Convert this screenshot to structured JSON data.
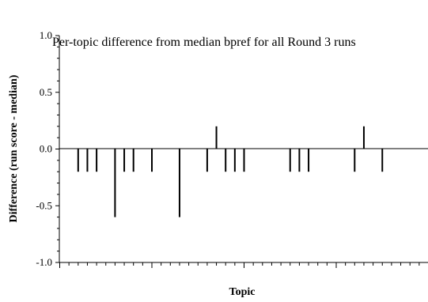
{
  "chart_data": {
    "type": "bar",
    "title": "Per-topic difference from median bpref for all Round 3 runs",
    "xlabel": "Topic",
    "ylabel": "Difference (run score - median)",
    "ylim": [
      -1.0,
      1.0
    ],
    "y_ticks": [
      "1.0",
      "0.5",
      "0.0",
      "-0.5",
      "-1.0"
    ],
    "grid": false,
    "zero_line": true,
    "x": [
      1,
      2,
      3,
      4,
      5,
      6,
      7,
      8,
      9,
      10,
      11,
      12,
      13,
      14,
      15,
      16,
      17,
      18,
      19,
      20,
      21,
      22,
      23,
      24,
      25,
      26,
      27,
      28,
      29,
      30,
      31,
      32,
      33,
      34,
      35,
      36,
      37,
      38,
      39,
      40,
      41,
      42,
      43,
      44,
      45,
      46,
      47,
      48,
      49,
      50
    ],
    "values": [
      0,
      0,
      -0.2,
      -0.2,
      -0.2,
      0,
      -0.6,
      -0.2,
      -0.2,
      0,
      -0.2,
      0,
      0,
      -0.6,
      0,
      0,
      -0.2,
      0.2,
      -0.2,
      -0.2,
      -0.2,
      0,
      0,
      0,
      0,
      -0.2,
      -0.2,
      -0.2,
      0,
      0,
      0,
      0,
      -0.2,
      0.2,
      0,
      -0.2,
      0,
      0,
      0,
      0,
      0,
      0,
      0,
      0,
      0,
      0,
      0,
      0,
      0,
      0
    ],
    "bar_color": "#000000"
  }
}
